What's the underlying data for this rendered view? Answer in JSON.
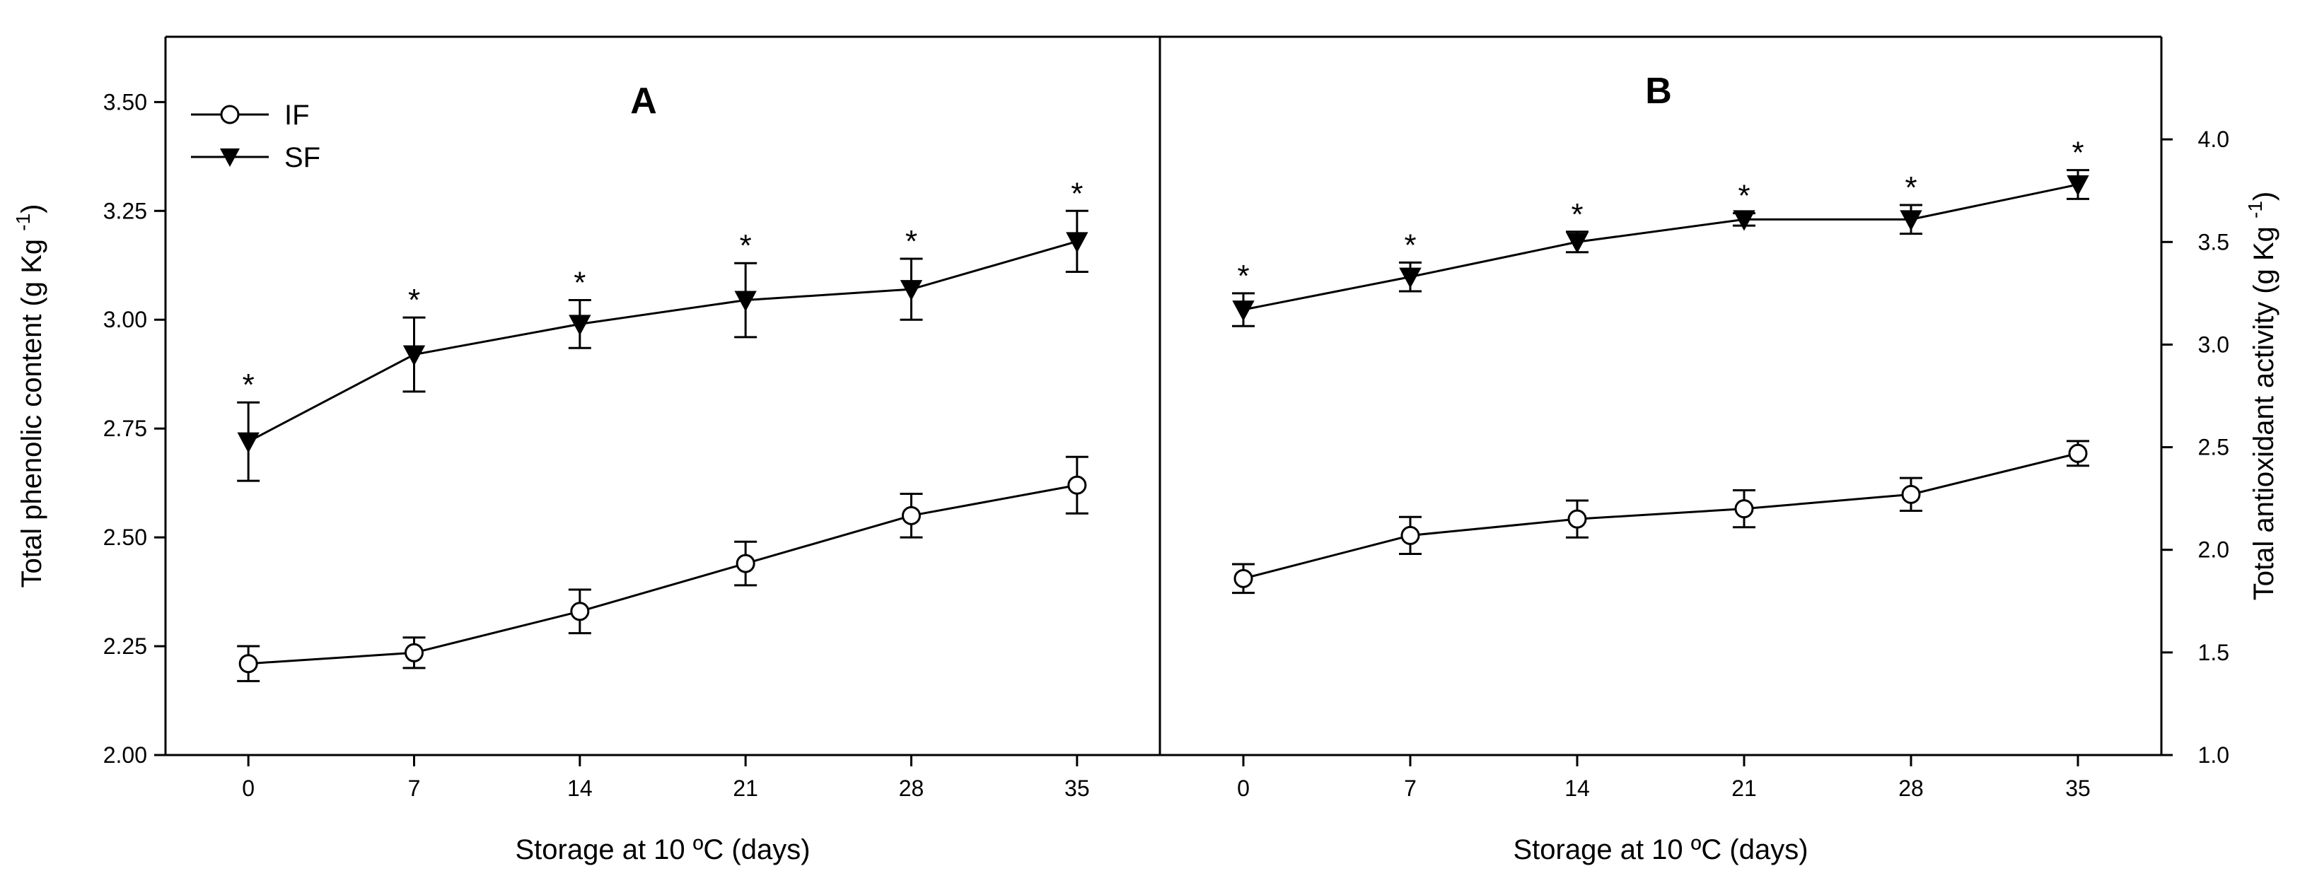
{
  "chart_data": [
    {
      "panel": "A",
      "type": "line",
      "title": "A",
      "xlabel": "Storage at 10 ºC (days)",
      "ylabel": "Total phenolic content (g Kg",
      "ylabel_sup": "-1",
      "ylabel_close": ")",
      "x": [
        0,
        7,
        14,
        21,
        28,
        35
      ],
      "xticks": [
        "0",
        "7",
        "14",
        "21",
        "28",
        "35"
      ],
      "xlim": [
        -3.5,
        38.5
      ],
      "ylim": [
        2.0,
        3.65
      ],
      "yticks": [
        "2.00",
        "2.25",
        "2.50",
        "2.75",
        "3.00",
        "3.25",
        "3.50"
      ],
      "series": [
        {
          "name": "IF",
          "marker": "open-circle",
          "values": [
            2.21,
            2.235,
            2.33,
            2.44,
            2.55,
            2.62
          ],
          "errors": [
            0.04,
            0.035,
            0.05,
            0.05,
            0.05,
            0.065
          ],
          "annotations": [
            "",
            "",
            "",
            "",
            "",
            ""
          ]
        },
        {
          "name": "SF",
          "marker": "filled-triangle-down",
          "values": [
            2.72,
            2.92,
            2.99,
            3.045,
            3.07,
            3.18
          ],
          "errors": [
            0.09,
            0.085,
            0.055,
            0.085,
            0.07,
            0.07
          ],
          "annotations": [
            "*",
            "*",
            "*",
            "*",
            "*",
            "*"
          ]
        }
      ],
      "legend": {
        "position": "top-left",
        "entries": [
          "IF",
          "SF"
        ]
      }
    },
    {
      "panel": "B",
      "type": "line",
      "title": "B",
      "xlabel": "Storage at 10 ºC (days)",
      "ylabel": "Total antioxidant activity (g Kg",
      "ylabel_sup": "-1",
      "ylabel_close": ")",
      "x": [
        0,
        7,
        14,
        21,
        28,
        35
      ],
      "xticks": [
        "0",
        "7",
        "14",
        "21",
        "28",
        "35"
      ],
      "xlim": [
        -3.5,
        38.5
      ],
      "ylim": [
        1.0,
        4.5
      ],
      "yticks": [
        "1.0",
        "1.5",
        "2.0",
        "2.5",
        "3.0",
        "3.5",
        "4.0"
      ],
      "series": [
        {
          "name": "IF",
          "marker": "open-circle",
          "values": [
            1.86,
            2.07,
            2.15,
            2.2,
            2.27,
            2.47
          ],
          "errors": [
            0.07,
            0.09,
            0.09,
            0.09,
            0.08,
            0.06
          ],
          "annotations": [
            "",
            "",
            "",
            "",
            "",
            ""
          ]
        },
        {
          "name": "SF",
          "marker": "filled-triangle-down",
          "values": [
            3.17,
            3.33,
            3.5,
            3.61,
            3.61,
            3.78
          ],
          "errors": [
            0.08,
            0.07,
            0.05,
            0.03,
            0.07,
            0.07
          ],
          "annotations": [
            "*",
            "*",
            "*",
            "*",
            "*",
            "*"
          ]
        }
      ]
    }
  ]
}
